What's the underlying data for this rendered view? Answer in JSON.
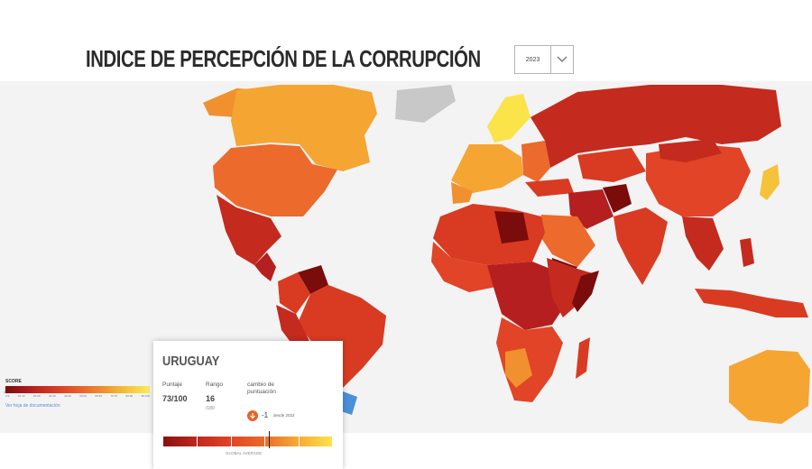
{
  "header": {
    "title": "INDICE DE PERCEPCIÓN DE LA CORRUPCIÓN",
    "year_selected": "2023"
  },
  "legend": {
    "label": "SCORE",
    "ticks": [
      "0-9",
      "10-19",
      "20-29",
      "30-39",
      "40-49",
      "50-59",
      "60-69",
      "70-79",
      "80-89",
      "90-100"
    ],
    "no_data": "0",
    "link": "Ver hoja de documentación"
  },
  "card": {
    "country": "URUGUAY",
    "score_label": "Puntaje",
    "score_value": "73/100",
    "rank_label": "Rango",
    "rank_value": "16",
    "rank_sub": "/180",
    "change_label_1": "cambio de",
    "change_label_2": "puntuación",
    "change_value": "-1",
    "change_since": "desde 2022",
    "bar_label": "GLOBAL AVERAGE"
  },
  "colors": {
    "very_high_corruption": "#8a1010",
    "high_corruption": "#c42a1e",
    "medium_high": "#e14426",
    "medium": "#ec6a2b",
    "medium_low": "#f5a532",
    "low_corruption": "#fde34a",
    "no_data": "#c8c8c8",
    "highlight": "#4a90d9"
  }
}
